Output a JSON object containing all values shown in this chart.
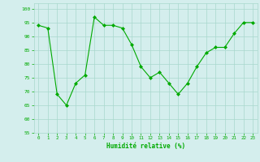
{
  "x": [
    0,
    1,
    2,
    3,
    4,
    5,
    6,
    7,
    8,
    9,
    10,
    11,
    12,
    13,
    14,
    15,
    16,
    17,
    18,
    19,
    20,
    21,
    22,
    23
  ],
  "y": [
    94,
    93,
    69,
    65,
    73,
    76,
    97,
    94,
    94,
    93,
    87,
    79,
    75,
    77,
    73,
    69,
    73,
    79,
    84,
    86,
    86,
    91,
    95,
    95
  ],
  "line_color": "#00aa00",
  "marker": "D",
  "marker_size": 2.0,
  "bg_color": "#d4eeed",
  "grid_color": "#a8d8cc",
  "xlabel": "Humidité relative (%)",
  "xlabel_color": "#00aa00",
  "ylim": [
    55,
    102
  ],
  "yticks": [
    55,
    60,
    65,
    70,
    75,
    80,
    85,
    90,
    95,
    100
  ],
  "xticks": [
    0,
    1,
    2,
    3,
    4,
    5,
    6,
    7,
    8,
    9,
    10,
    11,
    12,
    13,
    14,
    15,
    16,
    17,
    18,
    19,
    20,
    21,
    22,
    23
  ],
  "tick_color": "#00aa00",
  "figsize": [
    3.2,
    2.0
  ],
  "dpi": 100
}
